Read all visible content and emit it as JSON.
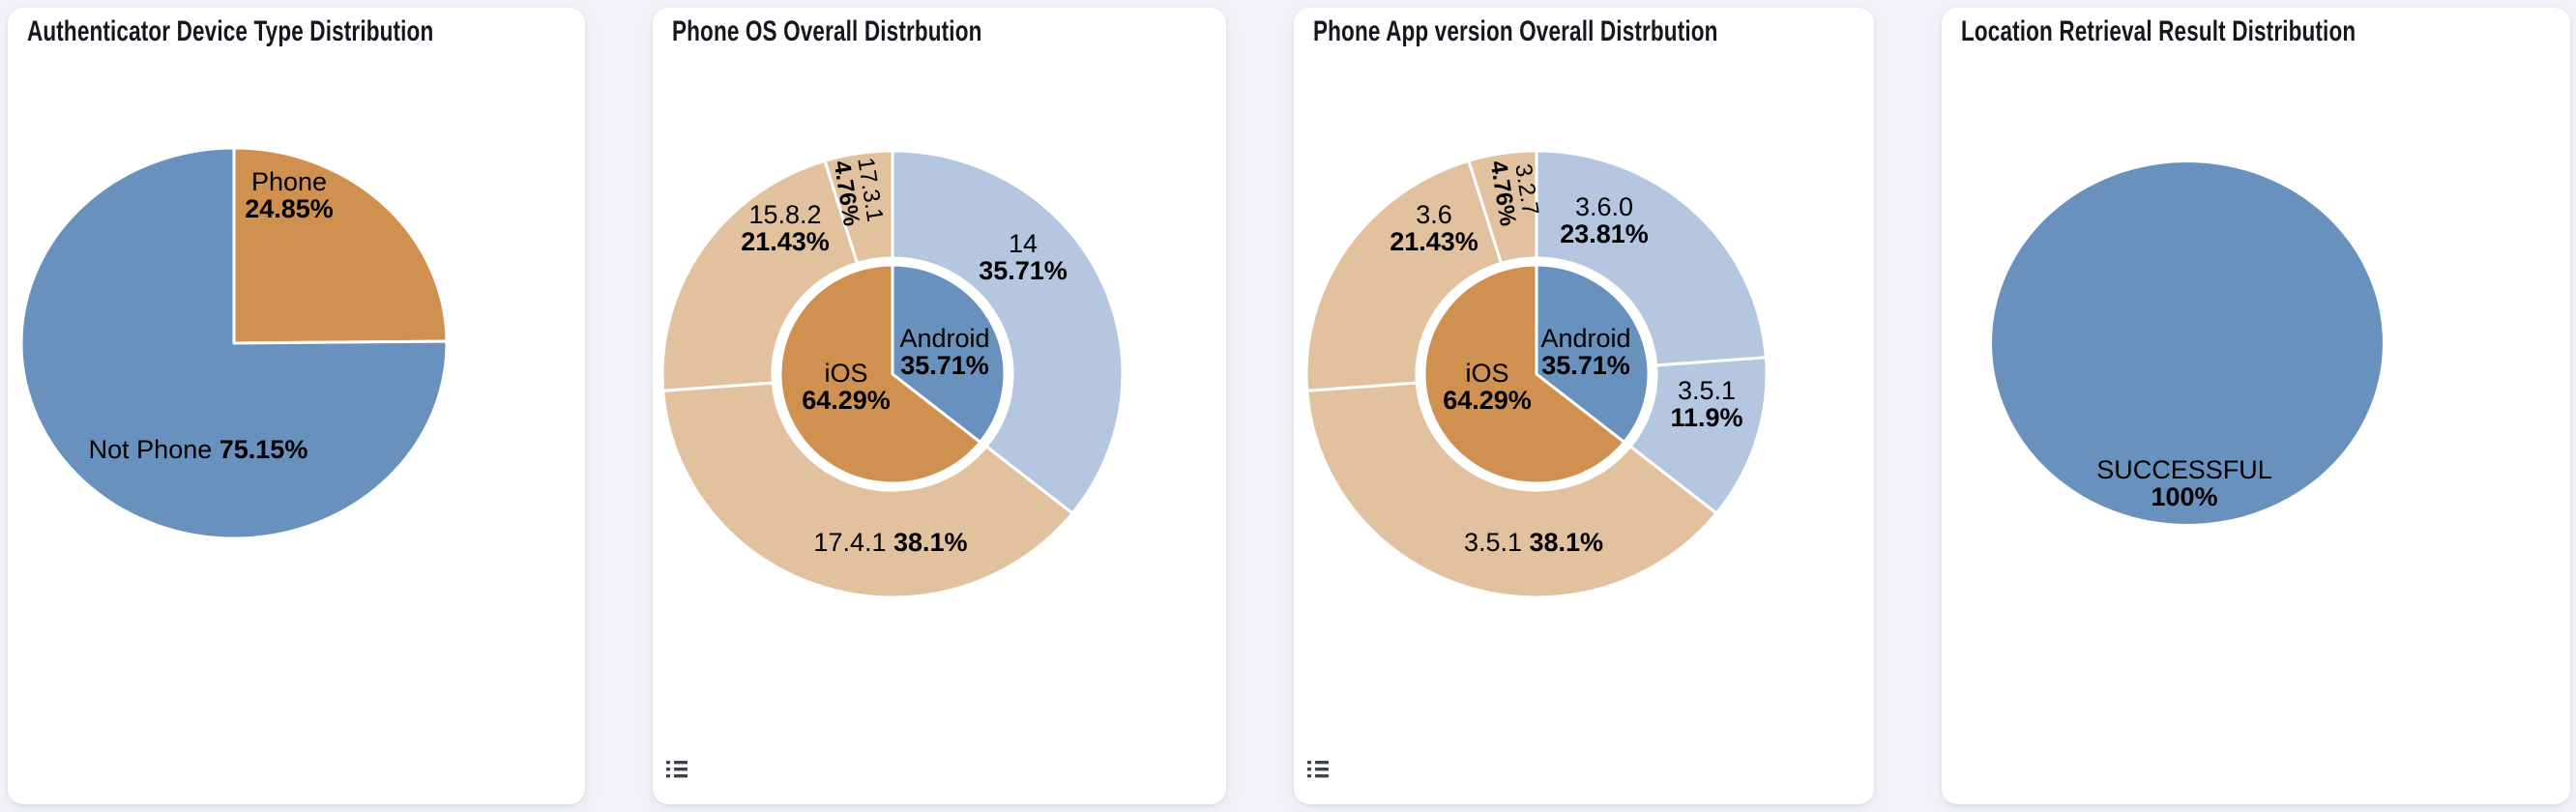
{
  "page": {
    "background_color": "#f1f3f8",
    "card_color": "#ffffff",
    "title_text_color": "#14171e",
    "icon_color": "#3d4250"
  },
  "colors": {
    "blue": "#6991be",
    "orange": "#d0904f",
    "light_blue": "#b4c6e0",
    "light_tan": "#e2c19e"
  },
  "cards": [
    {
      "title": "Authenticator Device Type Distribution",
      "legend_toggle": false
    },
    {
      "title": "Phone OS Overall Distrbution",
      "legend_toggle": true,
      "legend_toggle_icon": "list-icon"
    },
    {
      "title": "Phone App version Overall Distrbution",
      "legend_toggle": true,
      "legend_toggle_icon": "list-icon"
    },
    {
      "title": "Location Retrieval Result Distribution",
      "legend_toggle": false
    }
  ],
  "chart_data": [
    {
      "type": "pie",
      "title": "Authenticator Device Type Distribution",
      "start_angle": "top",
      "direction": "clockwise",
      "legend": "none",
      "slices": [
        {
          "label": "Phone",
          "value": 24.85,
          "pct_label": "24.85%",
          "color": "#d0904f"
        },
        {
          "label": "Not Phone",
          "value": 75.15,
          "pct_label": "75.15%",
          "color": "#6991be"
        }
      ]
    },
    {
      "type": "sunburst",
      "title": "Phone OS Overall Distrbution",
      "start_angle": "top",
      "direction": "clockwise",
      "legend": "none",
      "inner_ring": [
        {
          "label": "Android",
          "value": 35.71,
          "pct_label": "35.71%",
          "color": "#6991be"
        },
        {
          "label": "iOS",
          "value": 64.29,
          "pct_label": "64.29%",
          "color": "#d0904f"
        }
      ],
      "outer_ring": [
        {
          "label": "14",
          "value": 35.71,
          "pct_label": "35.71%",
          "parent": "Android",
          "color": "#b4c6e0"
        },
        {
          "label": "17.4.1",
          "value": 38.1,
          "pct_label": "38.1%",
          "parent": "iOS",
          "color": "#e2c19e"
        },
        {
          "label": "15.8.2",
          "value": 21.43,
          "pct_label": "21.43%",
          "parent": "iOS",
          "color": "#e2c19e"
        },
        {
          "label": "17.3.1",
          "value": 4.76,
          "pct_label": "4.76%",
          "parent": "iOS",
          "color": "#e2c19e"
        }
      ]
    },
    {
      "type": "sunburst",
      "title": "Phone App version Overall Distrbution",
      "start_angle": "top",
      "direction": "clockwise",
      "legend": "none",
      "inner_ring": [
        {
          "label": "Android",
          "value": 35.71,
          "pct_label": "35.71%",
          "color": "#6991be"
        },
        {
          "label": "iOS",
          "value": 64.29,
          "pct_label": "64.29%",
          "color": "#d0904f"
        }
      ],
      "outer_ring": [
        {
          "label": "3.6.0",
          "value": 23.81,
          "pct_label": "23.81%",
          "parent": "Android",
          "color": "#b4c6e0"
        },
        {
          "label": "3.5.1",
          "value": 11.9,
          "pct_label": "11.9%",
          "parent": "Android",
          "color": "#b4c6e0"
        },
        {
          "label": "3.5.1",
          "value": 38.1,
          "pct_label": "38.1%",
          "parent": "iOS",
          "color": "#e2c19e"
        },
        {
          "label": "3.6",
          "value": 21.43,
          "pct_label": "21.43%",
          "parent": "iOS",
          "color": "#e2c19e"
        },
        {
          "label": "3.2.7",
          "value": 4.76,
          "pct_label": "4.76%",
          "parent": "iOS",
          "color": "#e2c19e"
        }
      ]
    },
    {
      "type": "pie",
      "title": "Location Retrieval Result Distribution",
      "start_angle": "top",
      "direction": "clockwise",
      "legend": "none",
      "slices": [
        {
          "label": "SUCCESSFUL",
          "value": 100,
          "pct_label": "100%",
          "color": "#6991be"
        }
      ]
    }
  ]
}
